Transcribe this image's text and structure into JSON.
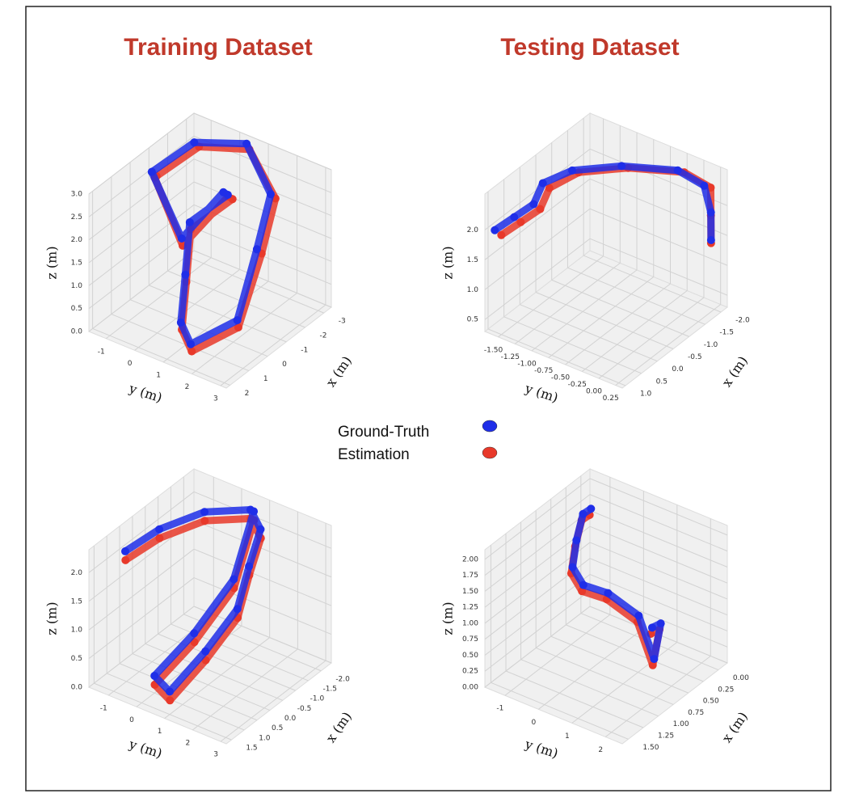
{
  "header": {
    "left": "Training Dataset",
    "right": "Testing Dataset"
  },
  "chart_data": [
    {
      "type": "scatter3d",
      "xlabel": "x (m)",
      "ylabel": "y (m)",
      "zlabel": "z (m)",
      "xlim": [
        -3.4,
        2.2
      ],
      "ylim": [
        -1.6,
        3.2
      ],
      "zlim": [
        0,
        3
      ],
      "xticks": [
        -3,
        -2,
        -1,
        0,
        1,
        2
      ],
      "yticks": [
        -1,
        0,
        1,
        2,
        3
      ],
      "zticks": [
        {
          "value": 0,
          "label": "0.0"
        },
        {
          "value": 0.5,
          "label": "0.5"
        },
        {
          "value": 1,
          "label": "1.0"
        },
        {
          "value": 1.5,
          "label": "1.5"
        },
        {
          "value": 2,
          "label": "2.0"
        },
        {
          "value": 2.5,
          "label": "2.5"
        },
        {
          "value": 3,
          "label": "3.0"
        }
      ],
      "series": [
        {
          "name": "Ground-Truth",
          "color": "#1f2ee8",
          "x": [
            -1,
            -2.5,
            -3,
            -2,
            -0.5,
            1,
            1.5,
            0.5,
            -0.5,
            -1.5,
            -2,
            -1,
            0,
            -1
          ],
          "y": [
            -1.5,
            -1,
            0.5,
            2,
            2.5,
            2.8,
            1.5,
            0.5,
            0,
            -0.5,
            0.5,
            1,
            0.2,
            -1.5
          ],
          "z": [
            2.5,
            2.8,
            3,
            2.6,
            2,
            1,
            0.3,
            0.2,
            0.8,
            1.5,
            2.2,
            2.7,
            1.8,
            2.5
          ]
        },
        {
          "name": "Estimation",
          "color": "#e8392a",
          "x": [
            -1.1,
            -2.6,
            -3,
            -2.1,
            -0.6,
            1.1,
            1.6,
            0.6,
            -0.4,
            -1.4,
            -2.1,
            -1.1,
            0.1,
            -1
          ],
          "y": [
            -1.4,
            -0.9,
            0.6,
            2.1,
            2.6,
            2.9,
            1.6,
            0.6,
            0.1,
            -0.4,
            0.6,
            1.1,
            0.3,
            -1.4
          ],
          "z": [
            2.4,
            2.7,
            2.9,
            2.5,
            1.9,
            0.9,
            0.2,
            0.1,
            0.7,
            1.4,
            2.1,
            2.6,
            1.7,
            2.4
          ]
        }
      ]
    },
    {
      "type": "scatter3d",
      "xlabel": "x (m)",
      "ylabel": "y (m)",
      "zlabel": "z (m)",
      "xlim": [
        -2.2,
        1.1
      ],
      "ylim": [
        -1.7,
        0.35
      ],
      "zlim": [
        0.3,
        2.6
      ],
      "xticks": [
        {
          "value": -2,
          "label": "-2.0"
        },
        -1.5,
        {
          "value": -1,
          "label": "-1.0"
        },
        -0.5,
        {
          "value": 0,
          "label": "0.0"
        },
        0.5,
        {
          "value": 1,
          "label": "1.0"
        }
      ],
      "yticks": [
        {
          "value": -1.5,
          "label": "-1.50"
        },
        -1.25,
        {
          "value": -1,
          "label": "-1.00"
        },
        -0.75,
        {
          "value": -0.5,
          "label": "-0.50"
        },
        -0.25,
        {
          "value": 0,
          "label": "0.00"
        },
        0.25
      ],
      "zticks": [
        0.5,
        {
          "value": 1,
          "label": "1.0"
        },
        1.5,
        {
          "value": 2,
          "label": "2.0"
        }
      ],
      "series": [
        {
          "name": "Ground-Truth",
          "color": "#1f2ee8",
          "x": [
            1,
            0.6,
            0.2,
            -0.3,
            -0.8,
            -1.3,
            -1.8,
            -2,
            -2,
            -1.9
          ],
          "y": [
            -1.6,
            -1.5,
            -1.4,
            -1.5,
            -1.3,
            -0.8,
            -0.2,
            0.1,
            0.2,
            0.25
          ],
          "z": [
            2,
            2.1,
            2.2,
            2.3,
            2.4,
            2.5,
            2.5,
            2.3,
            1.9,
            1.5
          ]
        },
        {
          "name": "Estimation",
          "color": "#e8392a",
          "x": [
            0.9,
            0.5,
            0.1,
            -0.4,
            -0.9,
            -1.4,
            -1.9,
            -2.1,
            -2,
            -1.9
          ],
          "y": [
            -1.55,
            -1.45,
            -1.35,
            -1.45,
            -1.25,
            -0.75,
            -0.15,
            0.15,
            0.2,
            0.25
          ],
          "z": [
            1.9,
            2,
            2.1,
            2.2,
            2.35,
            2.45,
            2.45,
            2.25,
            1.85,
            1.45
          ]
        }
      ]
    },
    {
      "type": "scatter3d",
      "xlabel": "x (m)",
      "ylabel": "y (m)",
      "zlabel": "z (m)",
      "xlim": [
        -2.4,
        1.7
      ],
      "ylim": [
        -1.7,
        3.2
      ],
      "zlim": [
        0,
        2.4
      ],
      "xticks": [
        {
          "value": -2,
          "label": "-2.0"
        },
        -1.5,
        {
          "value": -1,
          "label": "-1.0"
        },
        -0.5,
        {
          "value": 0,
          "label": "0.0"
        },
        0.5,
        {
          "value": 1,
          "label": "1.0"
        },
        1.5
      ],
      "yticks": [
        -1,
        0,
        1,
        2,
        3
      ],
      "zticks": [
        {
          "value": 0,
          "label": "0.0"
        },
        0.5,
        {
          "value": 1,
          "label": "1.0"
        },
        1.5,
        {
          "value": 2,
          "label": "2.0"
        }
      ],
      "series": [
        {
          "name": "Ground-Truth",
          "color": "#1f2ee8",
          "x": [
            0.5,
            -0.5,
            -1.5,
            -2.2,
            -1.5,
            -0.5,
            0.5,
            1.2,
            1.5,
            1,
            0,
            -1,
            -2
          ],
          "y": [
            -1.5,
            -1.2,
            -0.5,
            0.5,
            1.5,
            2,
            2.5,
            2,
            1,
            0,
            0.5,
            1,
            0.8
          ],
          "z": [
            2,
            2.1,
            2.2,
            2.2,
            2.3,
            2.1,
            1.8,
            1.2,
            0.4,
            0.3,
            0.8,
            1.5,
            2.3
          ]
        },
        {
          "name": "Estimation",
          "color": "#e8392a",
          "x": [
            0.6,
            -0.4,
            -1.4,
            -2.1,
            -1.4,
            -0.4,
            0.6,
            1.3,
            1.6,
            1.1,
            0.1,
            -0.9,
            -1.9
          ],
          "y": [
            -1.4,
            -1.1,
            -0.4,
            0.6,
            1.6,
            2.1,
            2.6,
            2.1,
            1.1,
            0.1,
            0.6,
            1.1,
            0.9
          ],
          "z": [
            1.9,
            2,
            2.1,
            2.1,
            2.2,
            2,
            1.7,
            1.1,
            0.3,
            0.2,
            0.7,
            1.4,
            2.2
          ]
        }
      ]
    },
    {
      "type": "scatter3d",
      "xlabel": "x (m)",
      "ylabel": "y (m)",
      "zlabel": "z (m)",
      "xlim": [
        -0.15,
        1.6
      ],
      "ylim": [
        -1.6,
        2.5
      ],
      "zlim": [
        0,
        2.15
      ],
      "xticks": [
        {
          "value": 0,
          "label": "0.00"
        },
        0.25,
        {
          "value": 0.5,
          "label": "0.50"
        },
        0.75,
        {
          "value": 1,
          "label": "1.00"
        },
        1.25,
        {
          "value": 1.5,
          "label": "1.50"
        }
      ],
      "yticks": [
        -1,
        0,
        1,
        2
      ],
      "zticks": [
        {
          "value": 0,
          "label": "0.00"
        },
        0.25,
        {
          "value": 0.5,
          "label": "0.50"
        },
        0.75,
        {
          "value": 1,
          "label": "1.00"
        },
        1.25,
        {
          "value": 1.5,
          "label": "1.50"
        },
        1.75,
        {
          "value": 2,
          "label": "2.00"
        }
      ],
      "series": [
        {
          "name": "Ground-Truth",
          "color": "#1f2ee8",
          "x": [
            0,
            0.3,
            0.8,
            1.2,
            1.3,
            1,
            0.6,
            0.4,
            0.4,
            0.6
          ],
          "y": [
            -1.3,
            -1,
            -0.3,
            0.3,
            0.8,
            1,
            1.2,
            1.3,
            1.5,
            1.6
          ],
          "z": [
            1.7,
            1.9,
            2,
            2,
            1.9,
            1.6,
            1,
            0.2,
            0.8,
            0.9
          ]
        },
        {
          "name": "Estimation",
          "color": "#e8392a",
          "x": [
            0.05,
            0.35,
            0.85,
            1.25,
            1.35,
            1.05,
            0.65,
            0.45,
            0.45,
            0.65
          ],
          "y": [
            -1.25,
            -0.95,
            -0.25,
            0.35,
            0.85,
            1.05,
            1.25,
            1.35,
            1.55,
            1.65
          ],
          "z": [
            1.65,
            1.85,
            1.95,
            1.95,
            1.85,
            1.55,
            0.95,
            0.15,
            0.75,
            0.85
          ]
        }
      ]
    }
  ]
}
